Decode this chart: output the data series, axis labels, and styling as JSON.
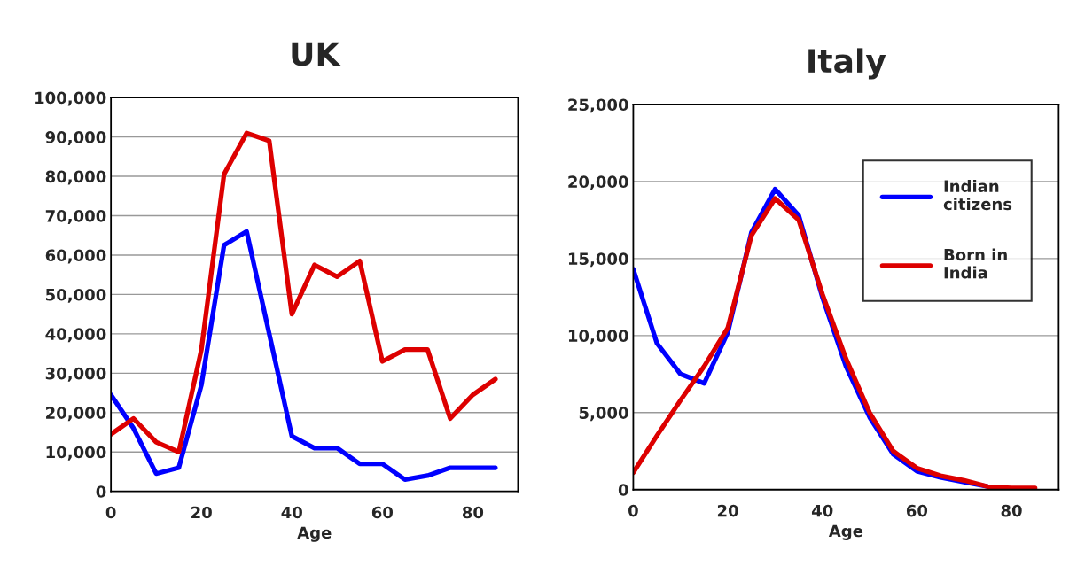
{
  "chart_data": [
    {
      "type": "line",
      "title": "UK",
      "xlabel": "Age",
      "x": [
        0,
        5,
        10,
        15,
        20,
        25,
        30,
        35,
        40,
        45,
        50,
        55,
        60,
        65,
        70,
        75,
        80,
        85
      ],
      "xlim": [
        0,
        90
      ],
      "xticks": [
        0,
        20,
        40,
        60,
        80
      ],
      "ylim": [
        0,
        100000
      ],
      "yticks": [
        {
          "value": 0,
          "label": "0"
        },
        {
          "value": 10000,
          "label": "10,000"
        },
        {
          "value": 20000,
          "label": "20,000"
        },
        {
          "value": 30000,
          "label": "30,000"
        },
        {
          "value": 40000,
          "label": "40,000"
        },
        {
          "value": 50000,
          "label": "50,000"
        },
        {
          "value": 60000,
          "label": "60,000"
        },
        {
          "value": 70000,
          "label": "70,000"
        },
        {
          "value": 80000,
          "label": "80,000"
        },
        {
          "value": 90000,
          "label": "90,000"
        },
        {
          "value": 100000,
          "label": "100,000"
        }
      ],
      "grid": "y",
      "legend": false,
      "series": [
        {
          "color": "#0000ff",
          "values": [
            24500,
            16000,
            4500,
            6000,
            27000,
            62500,
            66000,
            40000,
            14000,
            11000,
            11000,
            7000,
            7000,
            3000,
            4000,
            6000,
            6000,
            6000
          ]
        },
        {
          "color": "#dd0000",
          "values": [
            14500,
            18500,
            12500,
            10000,
            36000,
            80500,
            91000,
            89000,
            45000,
            57500,
            54500,
            58500,
            33000,
            36000,
            36000,
            18500,
            24500,
            28500
          ]
        }
      ]
    },
    {
      "type": "line",
      "title": "Italy",
      "xlabel": "Age",
      "x": [
        0,
        5,
        10,
        15,
        20,
        25,
        30,
        35,
        40,
        45,
        50,
        55,
        60,
        65,
        70,
        75,
        80,
        85
      ],
      "xlim": [
        0,
        90
      ],
      "xticks": [
        0,
        20,
        40,
        60,
        80
      ],
      "ylim": [
        0,
        25000
      ],
      "yticks": [
        {
          "value": 0,
          "label": "0"
        },
        {
          "value": 5000,
          "label": "5,000"
        },
        {
          "value": 10000,
          "label": "10,000"
        },
        {
          "value": 15000,
          "label": "15,000"
        },
        {
          "value": 20000,
          "label": "20,000"
        },
        {
          "value": 25000,
          "label": "25,000"
        }
      ],
      "grid": "y",
      "legend": "top right",
      "series": [
        {
          "name": "Indian\ncitizens",
          "color": "#0000ff",
          "values": [
            14300,
            9500,
            7500,
            6900,
            10200,
            16700,
            19500,
            17800,
            12500,
            8000,
            4700,
            2300,
            1200,
            800,
            500,
            200,
            null,
            null
          ]
        },
        {
          "name": "Born in\nIndia",
          "color": "#dd0000",
          "values": [
            1100,
            3500,
            5800,
            8000,
            10500,
            16500,
            18900,
            17500,
            12700,
            8500,
            5000,
            2500,
            1400,
            900,
            600,
            200,
            100,
            100
          ]
        }
      ]
    }
  ]
}
